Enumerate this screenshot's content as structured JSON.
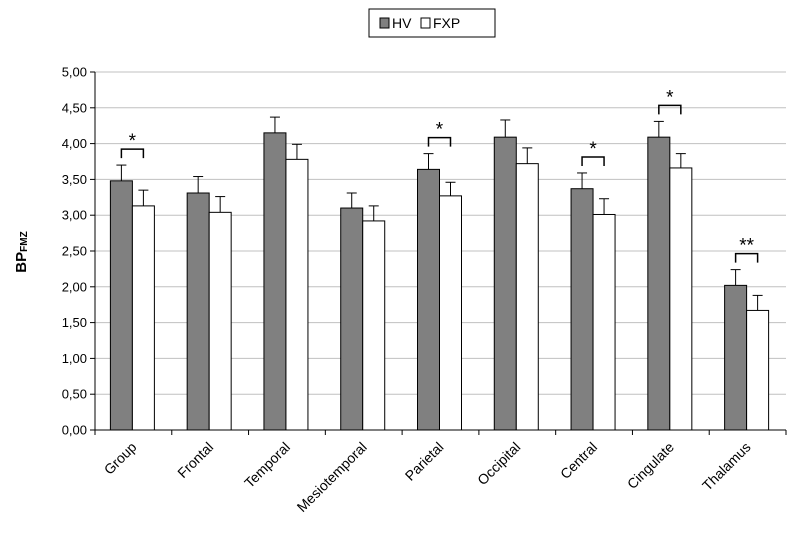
{
  "chart_data": {
    "type": "bar",
    "categories": [
      "Group",
      "Frontal",
      "Temporal",
      "Mesiotemporal",
      "Parietal",
      "Occipital",
      "Central",
      "Cingulate",
      "Thalamus"
    ],
    "series": [
      {
        "name": "HV",
        "color": "#808080",
        "values": [
          3.48,
          3.31,
          4.15,
          3.1,
          3.64,
          4.09,
          3.37,
          4.09,
          2.02
        ],
        "errors": [
          0.22,
          0.23,
          0.22,
          0.21,
          0.22,
          0.24,
          0.22,
          0.22,
          0.22
        ]
      },
      {
        "name": "FXP",
        "color": "#ffffff",
        "values": [
          3.13,
          3.04,
          3.78,
          2.92,
          3.27,
          3.72,
          3.01,
          3.66,
          1.67
        ],
        "errors": [
          0.22,
          0.22,
          0.21,
          0.21,
          0.19,
          0.22,
          0.22,
          0.2,
          0.21
        ]
      }
    ],
    "significance": [
      "*",
      "",
      "",
      "",
      "*",
      "",
      "*",
      "*",
      "**"
    ],
    "ylabel": "BP",
    "ylabel_subscript": "FMZ",
    "xlabel": "",
    "ylim": [
      0,
      5
    ],
    "yticks": [
      "0,00",
      "0,50",
      "1,00",
      "1,50",
      "2,00",
      "2,50",
      "3,00",
      "3,50",
      "4,00",
      "4,50",
      "5,00"
    ],
    "grid": true,
    "legend_position": "top-center"
  }
}
